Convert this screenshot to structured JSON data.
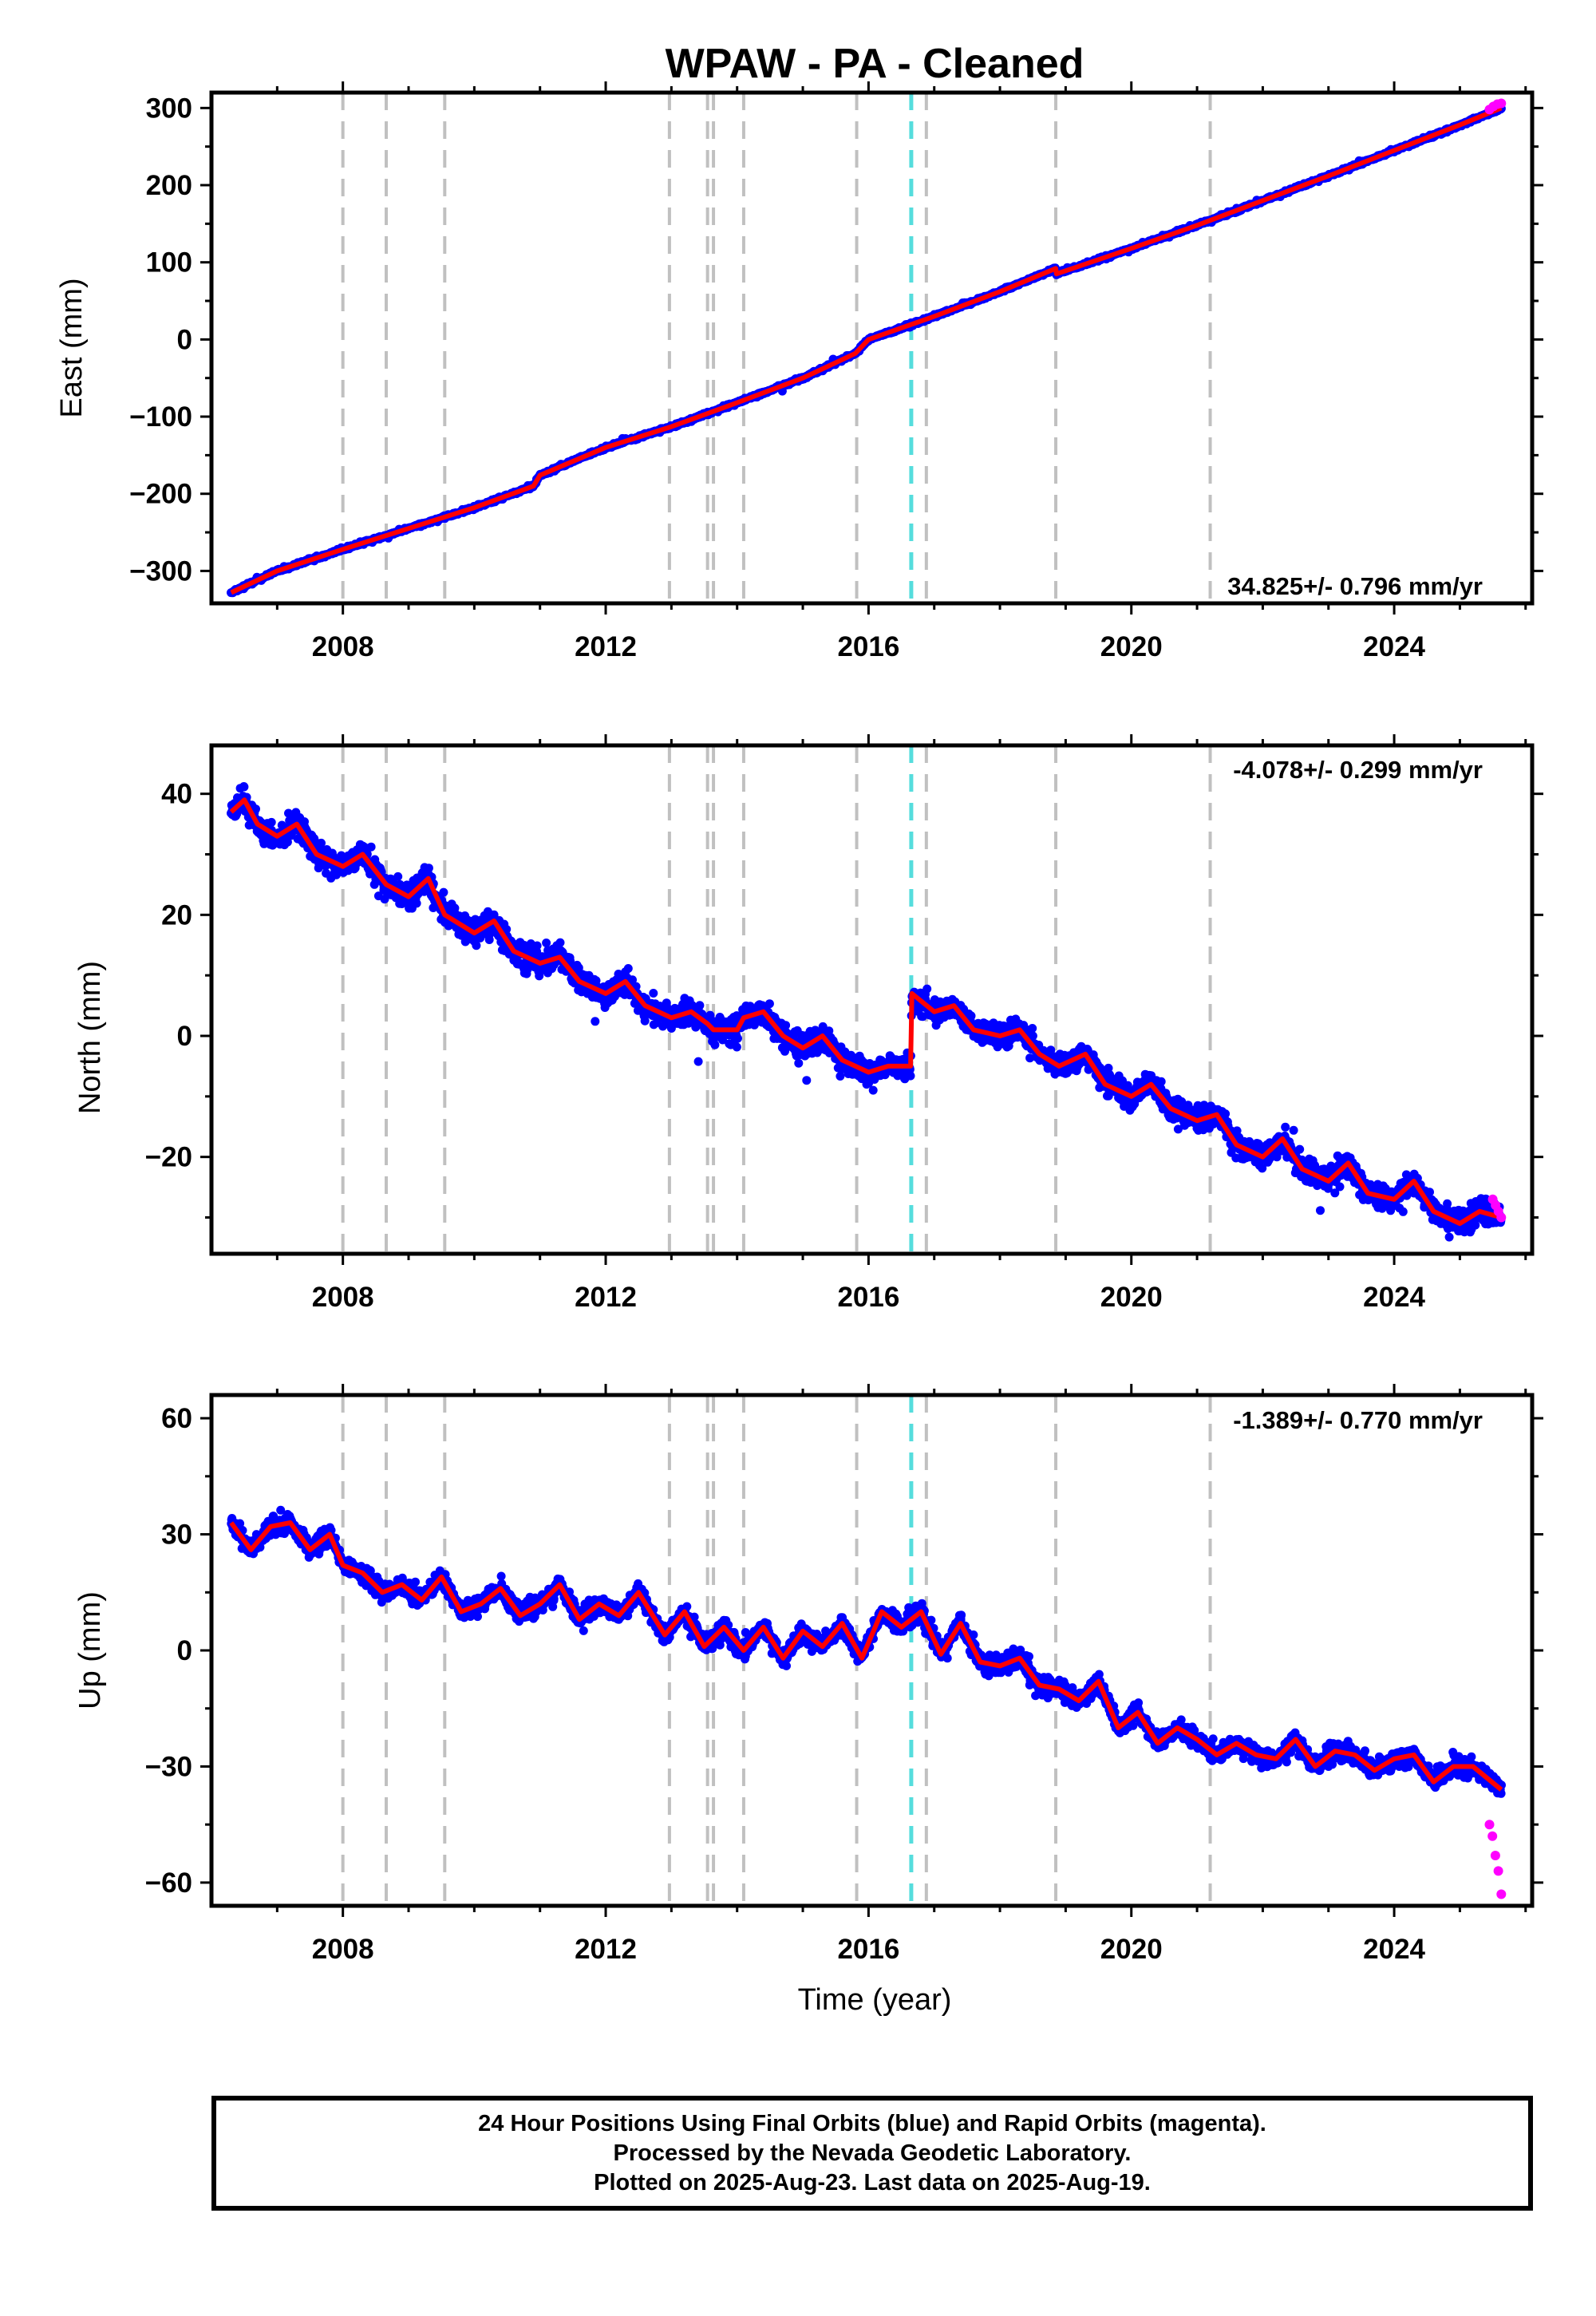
{
  "title": "WPAW  - PA - Cleaned",
  "xlabel": "Time (year)",
  "x_ticks": [
    "2008",
    "2012",
    "2016",
    "2020",
    "2024"
  ],
  "colors": {
    "final_orbits": "#0000ff",
    "rapid_orbits": "#ff00ff",
    "model": "#ff0000",
    "event_line": "#c0c0c0",
    "antenna_change_line": "#55dddd"
  },
  "footer": {
    "line1": "24 Hour Positions Using Final Orbits (blue) and Rapid Orbits (magenta).",
    "line2": "Processed by the Nevada Geodetic Laboratory.",
    "line3": "Plotted on 2025-Aug-23. Last data on 2025-Aug-19."
  },
  "chart_data": [
    {
      "type": "scatter",
      "component": "east",
      "ylabel": "East (mm)",
      "rate_label": "34.825+/- 0.796 mm/yr",
      "xlim": [
        2006.0,
        2026.1
      ],
      "ylim": [
        -342,
        320
      ],
      "y_ticks": [
        300,
        200,
        100,
        0,
        -100,
        -200,
        -300
      ],
      "y_tick_labels": [
        "300",
        "200",
        "100",
        "0",
        "−100",
        "−200",
        "−300"
      ],
      "data_span": [
        2006.3,
        2025.63
      ],
      "event_lines": [
        2008.0,
        2008.66,
        2009.55,
        2012.97,
        2013.55,
        2013.64,
        2014.1,
        2015.82,
        2016.88,
        2018.85,
        2021.2
      ],
      "antenna_change": 2016.65,
      "model": {
        "x": [
          2006.3,
          2007.0,
          2008.0,
          2009.0,
          2010.0,
          2010.9,
          2011.0,
          2012.0,
          2013.0,
          2014.0,
          2015.0,
          2015.8,
          2016.0,
          2017.0,
          2018.0,
          2018.85,
          2018.86,
          2020.0,
          2021.0,
          2022.0,
          2023.0,
          2024.0,
          2025.0,
          2025.63
        ],
        "y": [
          -328,
          -300,
          -272,
          -245,
          -218,
          -190,
          -176,
          -140,
          -113,
          -82,
          -50,
          -18,
          0,
          30,
          62,
          92,
          85,
          118,
          148,
          180,
          212,
          245,
          278,
          300
        ]
      },
      "rapid": {
        "start": 2025.45,
        "end": 2025.63,
        "y": [
          298,
          302,
          305,
          306
        ]
      }
    },
    {
      "type": "scatter",
      "component": "north",
      "ylabel": "North (mm)",
      "rate_label": "-4.078+/- 0.299 mm/yr",
      "xlim": [
        2006.0,
        2026.1
      ],
      "ylim": [
        -36,
        48
      ],
      "y_ticks": [
        40,
        20,
        0,
        -20
      ],
      "y_tick_labels": [
        "40",
        "20",
        "0",
        "−20"
      ],
      "data_span": [
        2006.3,
        2025.63
      ],
      "event_lines": [
        2008.0,
        2008.66,
        2009.55,
        2012.97,
        2013.55,
        2013.64,
        2014.1,
        2015.82,
        2016.88,
        2018.85,
        2021.2
      ],
      "antenna_change": 2016.65,
      "model": {
        "x": [
          2006.3,
          2006.5,
          2006.7,
          2007.0,
          2007.3,
          2007.6,
          2008.0,
          2008.3,
          2008.66,
          2009.0,
          2009.3,
          2009.55,
          2010.0,
          2010.3,
          2010.6,
          2011.0,
          2011.3,
          2011.6,
          2012.0,
          2012.3,
          2012.6,
          2013.0,
          2013.3,
          2013.55,
          2013.64,
          2014.0,
          2014.1,
          2014.4,
          2014.7,
          2015.0,
          2015.3,
          2015.6,
          2016.0,
          2016.3,
          2016.64,
          2016.66,
          2017.0,
          2017.3,
          2017.6,
          2018.0,
          2018.3,
          2018.6,
          2018.9,
          2019.3,
          2019.6,
          2020.0,
          2020.3,
          2020.6,
          2021.0,
          2021.3,
          2021.6,
          2022.0,
          2022.3,
          2022.6,
          2023.0,
          2023.3,
          2023.6,
          2024.0,
          2024.3,
          2024.6,
          2025.0,
          2025.3,
          2025.63
        ],
        "y": [
          37,
          39,
          35,
          33,
          35,
          30,
          28,
          30,
          25,
          23,
          26,
          20,
          17,
          19,
          14,
          12,
          13,
          9,
          7,
          9,
          5,
          3,
          4,
          2,
          1,
          1,
          3,
          4,
          0,
          -2,
          0,
          -4,
          -6,
          -5,
          -5,
          7,
          4,
          5,
          1,
          0,
          1,
          -3,
          -5,
          -3,
          -8,
          -10,
          -8,
          -12,
          -14,
          -13,
          -18,
          -20,
          -17,
          -22,
          -24,
          -21,
          -26,
          -27,
          -24,
          -29,
          -31,
          -29,
          -30
        ]
      },
      "rapid": {
        "start": 2025.5,
        "end": 2025.63,
        "y": [
          -27,
          -28,
          -29,
          -30
        ]
      }
    },
    {
      "type": "scatter",
      "component": "up",
      "ylabel": "Up (mm)",
      "rate_label": "-1.389+/- 0.770 mm/yr",
      "xlim": [
        2006.0,
        2026.1
      ],
      "ylim": [
        -66,
        66
      ],
      "y_ticks": [
        60,
        30,
        0,
        -30,
        -60
      ],
      "y_tick_labels": [
        "60",
        "30",
        "0",
        "−30",
        "−60"
      ],
      "data_span": [
        2006.3,
        2025.63
      ],
      "event_lines": [
        2008.0,
        2008.66,
        2009.55,
        2012.97,
        2013.55,
        2013.64,
        2014.1,
        2015.82,
        2016.88,
        2018.85,
        2021.2
      ],
      "antenna_change": 2016.65,
      "model": {
        "x": [
          2006.3,
          2006.6,
          2006.9,
          2007.2,
          2007.5,
          2007.8,
          2008.0,
          2008.3,
          2008.6,
          2008.9,
          2009.2,
          2009.5,
          2009.8,
          2010.1,
          2010.4,
          2010.7,
          2011.0,
          2011.3,
          2011.6,
          2011.9,
          2012.2,
          2012.5,
          2012.9,
          2013.2,
          2013.5,
          2013.8,
          2014.1,
          2014.4,
          2014.7,
          2015.0,
          2015.3,
          2015.6,
          2015.9,
          2016.2,
          2016.5,
          2016.8,
          2017.1,
          2017.4,
          2017.7,
          2018.0,
          2018.3,
          2018.6,
          2018.9,
          2019.2,
          2019.5,
          2019.8,
          2020.1,
          2020.4,
          2020.7,
          2021.0,
          2021.3,
          2021.6,
          2021.9,
          2022.2,
          2022.5,
          2022.8,
          2023.1,
          2023.4,
          2023.7,
          2024.0,
          2024.3,
          2024.6,
          2024.9,
          2025.2,
          2025.63
        ],
        "y": [
          33,
          26,
          32,
          33,
          26,
          30,
          22,
          20,
          15,
          17,
          13,
          19,
          10,
          12,
          16,
          9,
          12,
          17,
          8,
          12,
          9,
          15,
          4,
          10,
          1,
          6,
          0,
          6,
          -2,
          5,
          1,
          7,
          -2,
          10,
          6,
          10,
          -1,
          7,
          -3,
          -4,
          -2,
          -9,
          -10,
          -13,
          -8,
          -20,
          -16,
          -24,
          -20,
          -23,
          -27,
          -24,
          -27,
          -28,
          -23,
          -30,
          -26,
          -27,
          -31,
          -28,
          -27,
          -34,
          -30,
          -30,
          -36
        ]
      },
      "rapid": {
        "start": 2025.45,
        "end": 2025.63,
        "y": [
          -45,
          -48,
          -53,
          -57,
          -63
        ]
      }
    }
  ]
}
